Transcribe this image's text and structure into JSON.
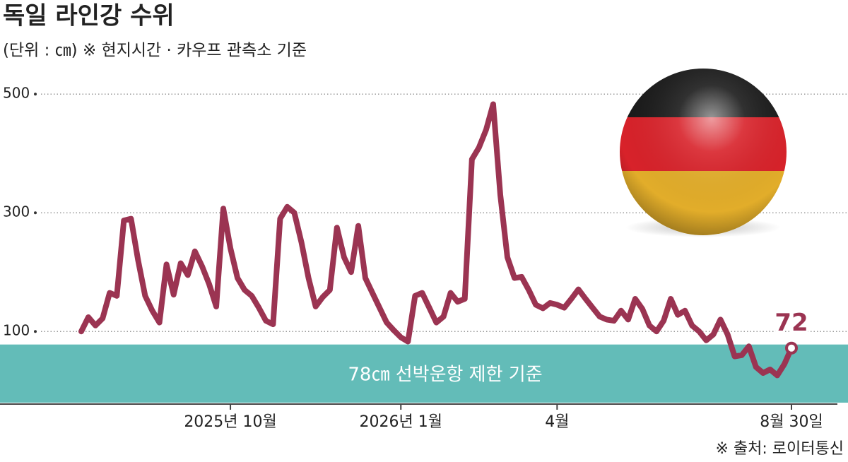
{
  "chart_data": {
    "type": "line",
    "title": "독일 라인강 수위",
    "subtitle": "(단위 : ㎝) ※ 현지시간 · 카우프 관측소 기준",
    "source": "※ 출처: 로이터통신",
    "categories": [
      null,
      null,
      null,
      null,
      null,
      null,
      null,
      null,
      null,
      null,
      null,
      null,
      null,
      null,
      null,
      null,
      null,
      null,
      null,
      null,
      null,
      "2025년 10월",
      null,
      null,
      null,
      null,
      null,
      null,
      null,
      null,
      null,
      null,
      null,
      null,
      null,
      null,
      null,
      null,
      null,
      null,
      null,
      null,
      null,
      null,
      null,
      "2026년 1월",
      null,
      null,
      null,
      null,
      null,
      null,
      null,
      null,
      null,
      null,
      null,
      null,
      null,
      null,
      null,
      null,
      null,
      null,
      null,
      null,
      null,
      "4월",
      null,
      null,
      null,
      null,
      null,
      null,
      null,
      null,
      null,
      null,
      null,
      null,
      null,
      null,
      null,
      null,
      null,
      null,
      null,
      null,
      null,
      null,
      null,
      null,
      null,
      null,
      null,
      null,
      null,
      null,
      null,
      null,
      "8월 30일"
    ],
    "values": [
      100,
      124,
      110,
      122,
      165,
      160,
      287,
      290,
      220,
      160,
      135,
      115,
      213,
      162,
      215,
      195,
      235,
      210,
      180,
      142,
      307,
      240,
      190,
      170,
      160,
      140,
      118,
      112,
      290,
      310,
      300,
      250,
      190,
      142,
      158,
      170,
      275,
      225,
      200,
      278,
      190,
      165,
      140,
      115,
      102,
      90,
      83,
      160,
      165,
      140,
      115,
      125,
      165,
      150,
      155,
      390,
      410,
      440,
      483,
      330,
      225,
      190,
      192,
      170,
      145,
      139,
      148,
      145,
      140,
      155,
      171,
      155,
      140,
      125,
      120,
      118,
      135,
      120,
      155,
      138,
      110,
      100,
      118,
      155,
      128,
      135,
      110,
      100,
      85,
      95,
      120,
      95,
      58,
      60,
      75,
      40,
      30,
      36,
      26,
      45,
      72
    ],
    "color": "#9b3452",
    "threshold": {
      "value": 78,
      "label": "78㎝ 선박운항 제한 기준",
      "color": "#63bcb8"
    },
    "ylim": [
      -20,
      540
    ],
    "yticks": [
      100,
      300,
      500
    ],
    "grid": true
  }
}
